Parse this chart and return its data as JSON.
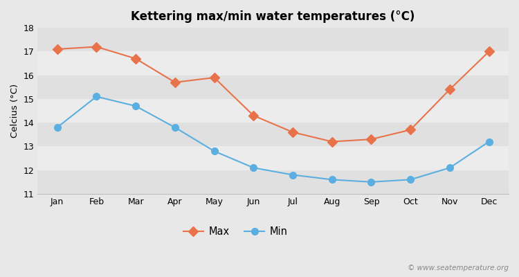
{
  "title": "Kettering max/min water temperatures (°C)",
  "ylabel": "Celcius (°C)",
  "months": [
    "Jan",
    "Feb",
    "Mar",
    "Apr",
    "May",
    "Jun",
    "Jul",
    "Aug",
    "Sep",
    "Oct",
    "Nov",
    "Dec"
  ],
  "max_values": [
    17.1,
    17.2,
    16.7,
    15.7,
    15.9,
    14.3,
    13.6,
    13.2,
    13.3,
    13.7,
    15.4,
    17.0
  ],
  "min_values": [
    13.8,
    15.1,
    14.7,
    13.8,
    12.8,
    12.1,
    11.8,
    11.6,
    11.5,
    11.6,
    12.1,
    13.2
  ],
  "max_color": "#e8724a",
  "min_color": "#5aafe0",
  "bg_color": "#e8e8e8",
  "band_light": "#ececec",
  "band_dark": "#e0e0e0",
  "ylim": [
    11,
    18
  ],
  "yticks": [
    11,
    12,
    13,
    14,
    15,
    16,
    17,
    18
  ],
  "title_fontsize": 12,
  "label_fontsize": 9.5,
  "tick_fontsize": 9,
  "legend_labels": [
    "Max",
    "Min"
  ],
  "watermark": "© www.seatemperature.org"
}
